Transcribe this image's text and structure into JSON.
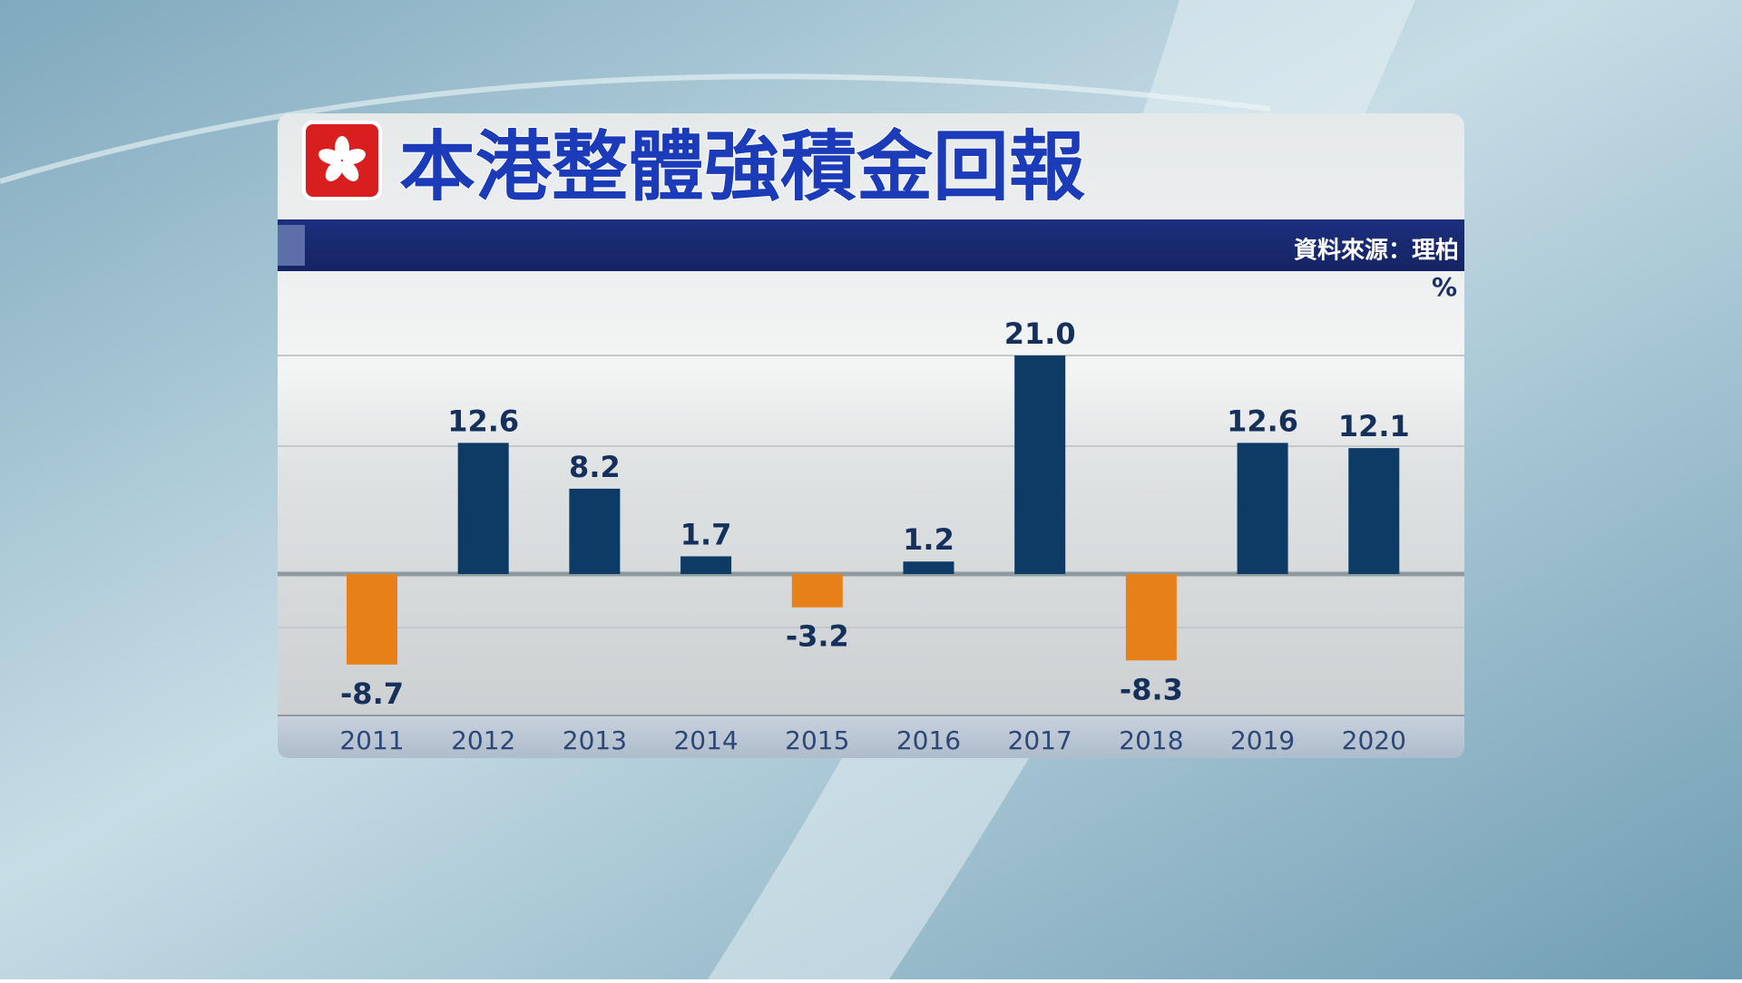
{
  "chart_data": {
    "type": "bar",
    "title": "本港整體強積金回報",
    "source": "資料來源：理柏",
    "unit": "%",
    "categories": [
      "2011",
      "2012",
      "2013",
      "2014",
      "2015",
      "2016",
      "2017",
      "2018",
      "2019",
      "2020"
    ],
    "values": [
      -8.7,
      12.6,
      8.2,
      1.7,
      -3.2,
      1.2,
      21.0,
      -8.3,
      12.6,
      12.1
    ],
    "value_labels": [
      "-8.7",
      "12.6",
      "8.2",
      "1.7",
      "-3.2",
      "1.2",
      "21.0",
      "-8.3",
      "12.6",
      "12.1"
    ],
    "color": "#0e3a66",
    "negative_color": "#e8801a"
  }
}
